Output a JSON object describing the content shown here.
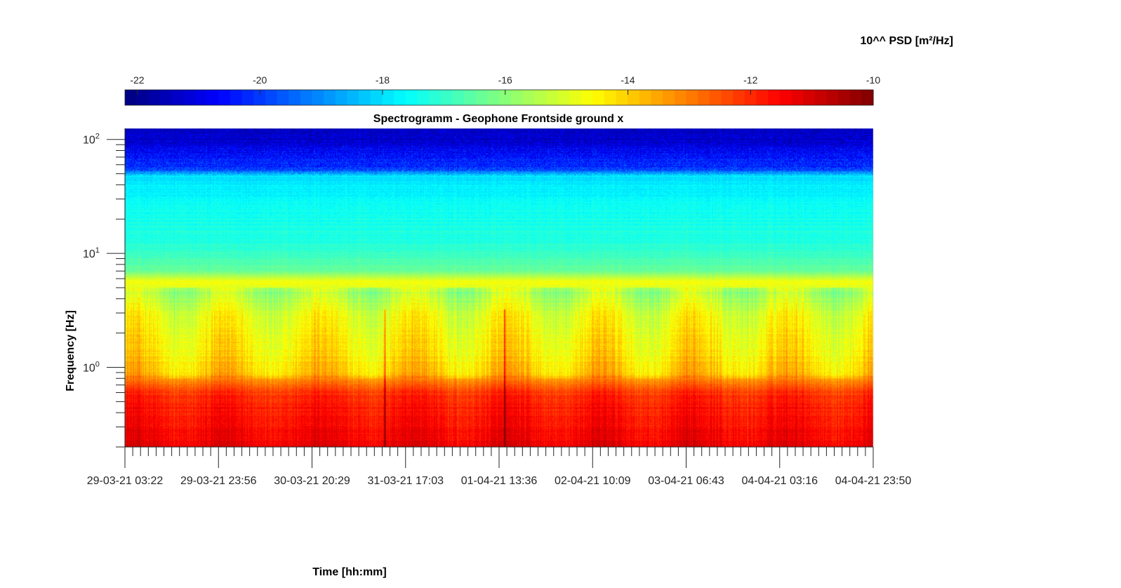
{
  "chart_data": {
    "type": "heatmap",
    "title": "Spectrogramm - Geophone Frontside ground x",
    "xlabel": "Time [hh:mm]",
    "ylabel": "Frequency [Hz]",
    "colorbar": {
      "label": "10^^ PSD [m²/Hz]",
      "range": [
        -22.2,
        -10
      ],
      "ticks": [
        -22,
        -20,
        -18,
        -16,
        -14,
        -12,
        -10
      ],
      "tick_labels": [
        "-22",
        "-20",
        "-18",
        "-16",
        "-14",
        "-12",
        "-10"
      ],
      "colormap": "jet",
      "location": "top"
    },
    "x_tick_labels": [
      "29-03-21 03:22",
      "29-03-21 23:56",
      "30-03-21 20:29",
      "31-03-21 17:03",
      "01-04-21 13:36",
      "02-04-21 10:09",
      "03-04-21 06:43",
      "04-04-21 03:16",
      "04-04-21 23:50"
    ],
    "y_scale": "log",
    "ylim": [
      0.2,
      125
    ],
    "y_ticks": [
      {
        "base": "10",
        "exp": "0",
        "value": 1
      },
      {
        "base": "10",
        "exp": "1",
        "value": 10
      },
      {
        "base": "10",
        "exp": "2",
        "value": 100
      }
    ],
    "grid": false,
    "psd_profile": [
      {
        "freq": 0.2,
        "log_psd": -11.3
      },
      {
        "freq": 0.3,
        "log_psd": -11.6
      },
      {
        "freq": 0.45,
        "log_psd": -11.8
      },
      {
        "freq": 0.6,
        "log_psd": -12.1
      },
      {
        "freq": 0.75,
        "log_psd": -13.0
      },
      {
        "freq": 0.9,
        "log_psd": -14.0
      },
      {
        "freq": 1.5,
        "log_psd": -14.4
      },
      {
        "freq": 3.0,
        "log_psd": -14.8
      },
      {
        "freq": 4.5,
        "log_psd": -15.6
      },
      {
        "freq": 5.6,
        "log_psd": -14.6
      },
      {
        "freq": 7.0,
        "log_psd": -16.4
      },
      {
        "freq": 12,
        "log_psd": -17.2
      },
      {
        "freq": 25,
        "log_psd": -17.5
      },
      {
        "freq": 48,
        "log_psd": -18.0
      },
      {
        "freq": 55,
        "log_psd": -20.0
      },
      {
        "freq": 100,
        "log_psd": -21.2
      },
      {
        "freq": 125,
        "log_psd": -21.3
      }
    ],
    "transient_events": [
      "31-03-21 07:30",
      "01-04-21 14:00"
    ]
  }
}
